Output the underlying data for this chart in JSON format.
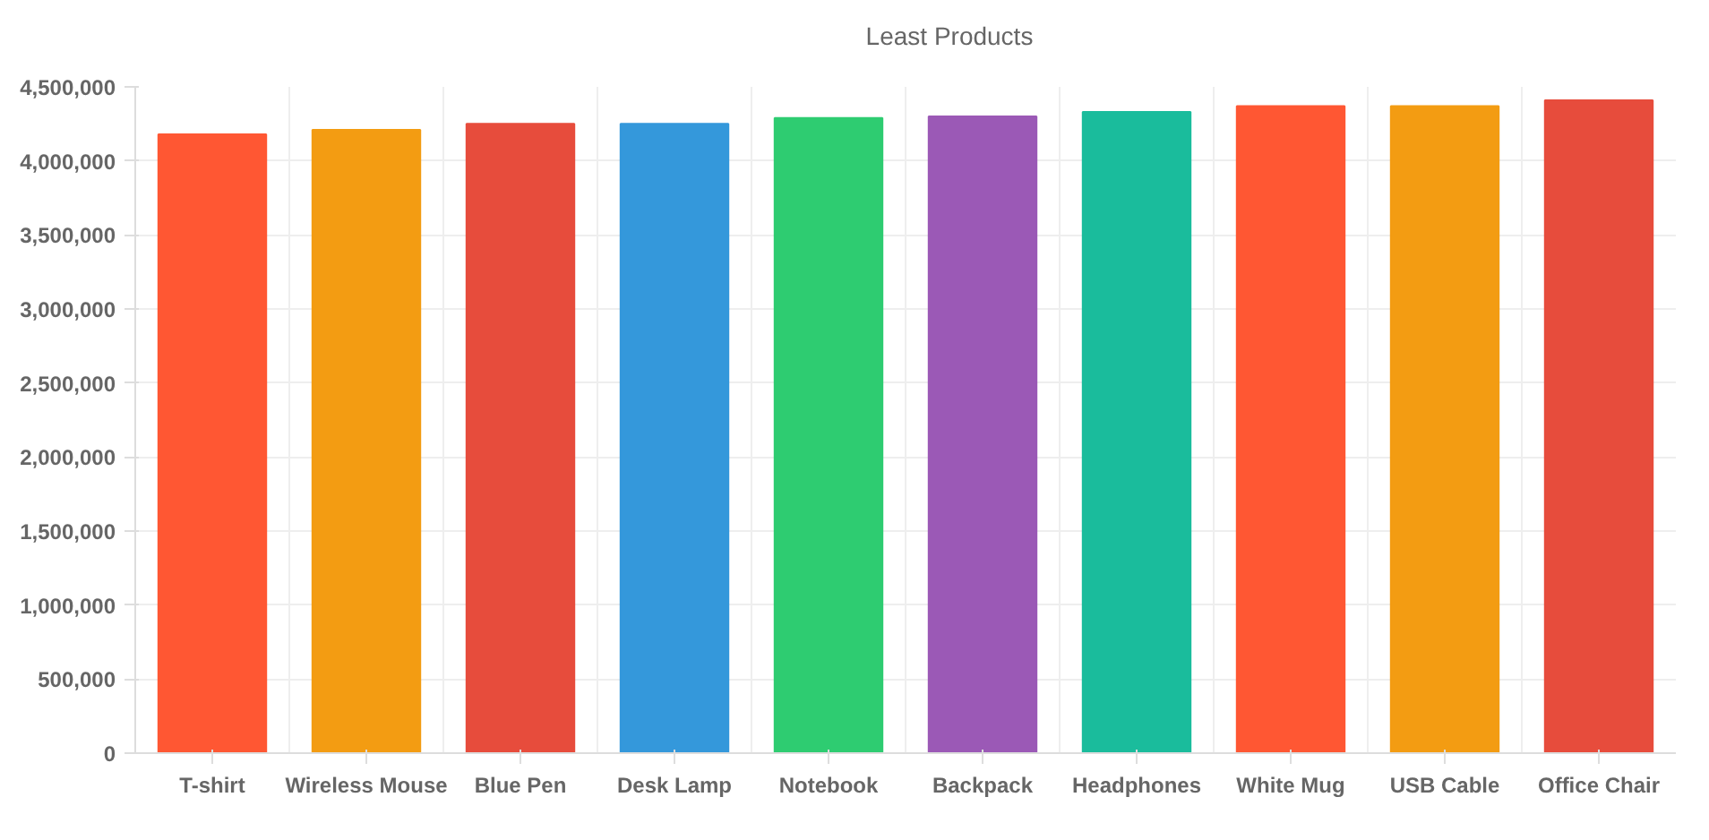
{
  "chart_data": {
    "type": "bar",
    "categories": [
      "T-shirt",
      "Wireless Mouse",
      "Blue Pen",
      "Desk Lamp",
      "Notebook",
      "Backpack",
      "Headphones",
      "White Mug",
      "USB Cable",
      "Office Chair"
    ],
    "series": [
      {
        "name": "Least Products",
        "colors": [
          "#ff5733",
          "#f39c12",
          "#e74c3c",
          "#3498db",
          "#2ecc71",
          "#9b59b6",
          "#1abc9c",
          "#ff5733",
          "#f39c12",
          "#e74c3c"
        ],
        "values": [
          4180000,
          4210000,
          4250000,
          4250000,
          4290000,
          4300000,
          4330000,
          4370000,
          4370000,
          4410000
        ]
      }
    ],
    "ylim": [
      0,
      4500000
    ],
    "yticks": [
      0,
      {
        "value": 500000,
        "label": "500,000"
      },
      {
        "value": 1000000,
        "label": "1,000,000"
      },
      {
        "value": 1500000,
        "label": "1,500,000"
      },
      {
        "value": 2000000,
        "label": "2,000,000"
      },
      {
        "value": 2500000,
        "label": "2,500,000"
      },
      {
        "value": 3000000,
        "label": "3,000,000"
      },
      {
        "value": 3500000,
        "label": "3,500,000"
      },
      {
        "value": 4000000,
        "label": "4,000,000"
      },
      {
        "value": 4500000,
        "label": "4,500,000"
      }
    ],
    "grid": true,
    "legend": "top"
  }
}
